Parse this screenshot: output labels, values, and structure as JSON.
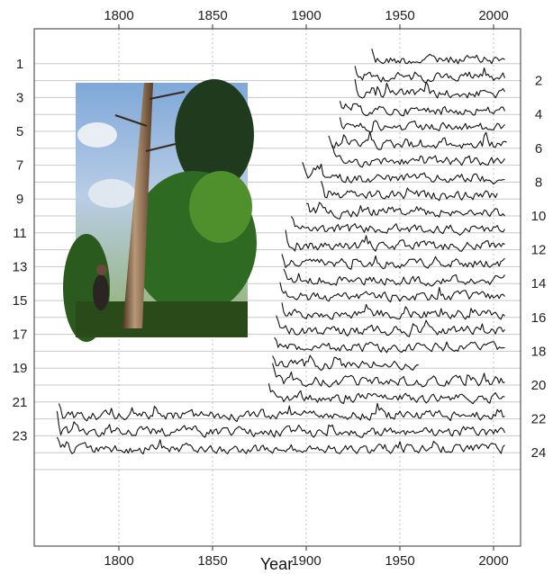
{
  "chart_data": {
    "type": "line",
    "title": "",
    "xlabel": "Year",
    "ylabel": "",
    "xlim": [
      1765,
      2012
    ],
    "x_ticks": [
      1800,
      1850,
      1900,
      1950,
      2000
    ],
    "x_tick_labels": [
      "1800",
      "1850",
      "1900",
      "1950",
      "2000"
    ],
    "x_ticks_shown": "top-and-bottom",
    "rows": 25,
    "row_labels_left": [
      "1",
      "3",
      "5",
      "7",
      "9",
      "11",
      "13",
      "15",
      "17",
      "19",
      "21",
      "23"
    ],
    "row_labels_right": [
      "2",
      "4",
      "6",
      "8",
      "10",
      "12",
      "14",
      "16",
      "18",
      "20",
      "22",
      "24"
    ],
    "grid": "horizontal rows and dotted vertical lines at x ticks",
    "inset_photo": "forest with a tall tree and a person at its base",
    "series": [
      {
        "row": 1,
        "start": 1935,
        "end": 2006
      },
      {
        "row": 2,
        "start": 1926,
        "end": 2006
      },
      {
        "row": 3,
        "start": 1926,
        "end": 2006
      },
      {
        "row": 4,
        "start": 1918,
        "end": 2006
      },
      {
        "row": 5,
        "start": 1918,
        "end": 2006
      },
      {
        "row": 6,
        "start": 1912,
        "end": 2007
      },
      {
        "row": 7,
        "start": 1914,
        "end": 2006
      },
      {
        "row": 8,
        "start": 1898,
        "end": 2006
      },
      {
        "row": 9,
        "start": 1908,
        "end": 2002
      },
      {
        "row": 10,
        "start": 1900,
        "end": 2006
      },
      {
        "row": 11,
        "start": 1892,
        "end": 2006
      },
      {
        "row": 12,
        "start": 1889,
        "end": 2006
      },
      {
        "row": 13,
        "start": 1887,
        "end": 2006
      },
      {
        "row": 14,
        "start": 1888,
        "end": 2006
      },
      {
        "row": 15,
        "start": 1886,
        "end": 2006
      },
      {
        "row": 16,
        "start": 1887,
        "end": 2006
      },
      {
        "row": 17,
        "start": 1884,
        "end": 2006
      },
      {
        "row": 18,
        "start": 1883,
        "end": 2006
      },
      {
        "row": 19,
        "start": 1882,
        "end": 1960
      },
      {
        "row": 20,
        "start": 1882,
        "end": 2006
      },
      {
        "row": 21,
        "start": 1880,
        "end": 2006
      },
      {
        "row": 22,
        "start": 1768,
        "end": 2006
      },
      {
        "row": 23,
        "start": 1767,
        "end": 2006
      },
      {
        "row": 24,
        "start": 1767,
        "end": 2006
      }
    ]
  }
}
